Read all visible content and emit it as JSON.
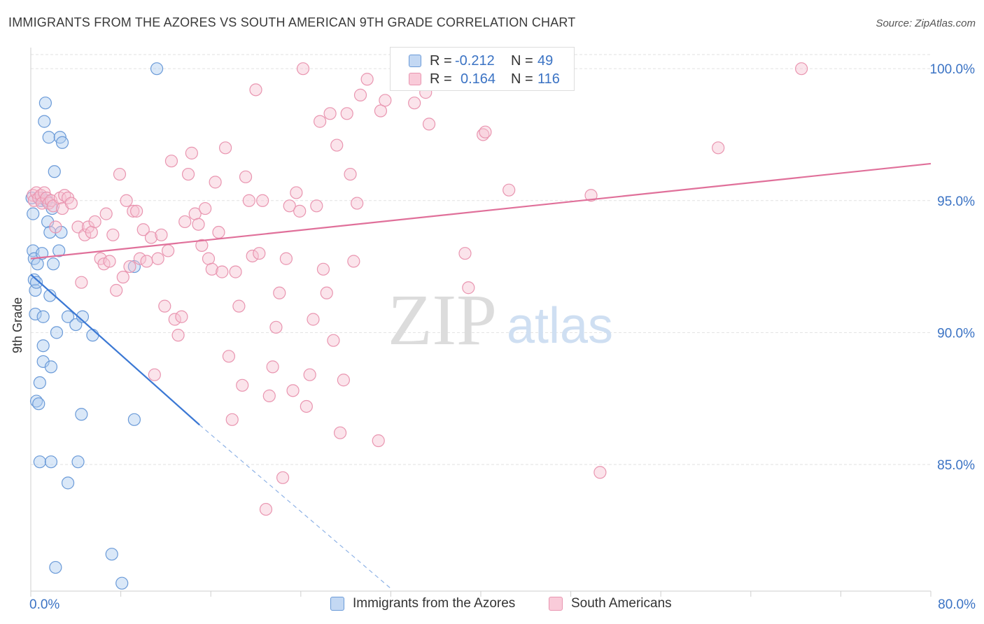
{
  "title": "IMMIGRANTS FROM THE AZORES VS SOUTH AMERICAN 9TH GRADE CORRELATION CHART",
  "source": "Source: ZipAtlas.com",
  "watermark": {
    "zip": "ZIP",
    "atlas": "atlas"
  },
  "colors": {
    "blue_fill": "#aecbf0",
    "blue_stroke": "#6a9ad8",
    "blue_line": "#3b78d4",
    "pink_fill": "#f7c3d3",
    "pink_stroke": "#e995b0",
    "pink_line": "#e0709a",
    "tick_label": "#3b73c4",
    "grid": "#e2e2e2"
  },
  "legend": {
    "rows": [
      {
        "r_label": "R =",
        "r_value": "-0.212",
        "n_label": "N =",
        "n_value": "49"
      },
      {
        "r_label": "R =",
        "r_value": "0.164",
        "n_label": "N =",
        "n_value": "116"
      }
    ]
  },
  "chart_data": {
    "type": "scatter",
    "title": "IMMIGRANTS FROM THE AZORES VS SOUTH AMERICAN 9TH GRADE CORRELATION CHART",
    "xlabel": "",
    "ylabel": "9th Grade",
    "xlim": [
      0,
      80
    ],
    "ylim": [
      80.2,
      100.8
    ],
    "x_tick_labels": [
      "0.0%",
      "80.0%"
    ],
    "y_ticks": [
      85,
      90,
      95,
      100
    ],
    "y_tick_labels": [
      "85.0%",
      "90.0%",
      "95.0%",
      "100.0%"
    ],
    "grid": true,
    "legend_position": "bottom",
    "series": [
      {
        "name": "Immigrants from the Azores",
        "color": "blue",
        "R": -0.212,
        "N": 49,
        "trend": {
          "x": [
            0,
            15
          ],
          "y": [
            92.2,
            86.5
          ]
        },
        "trend_dashed": {
          "x": [
            15,
            32
          ],
          "y": [
            86.5,
            80.3
          ]
        },
        "points": [
          [
            0.1,
            95.1
          ],
          [
            0.2,
            94.5
          ],
          [
            0.2,
            93.1
          ],
          [
            0.3,
            92.8
          ],
          [
            0.3,
            92.0
          ],
          [
            0.4,
            91.6
          ],
          [
            0.4,
            90.7
          ],
          [
            0.5,
            91.9
          ],
          [
            0.6,
            92.6
          ],
          [
            0.5,
            87.4
          ],
          [
            0.7,
            87.3
          ],
          [
            0.8,
            88.1
          ],
          [
            0.8,
            85.1
          ],
          [
            0.9,
            95.0
          ],
          [
            1.0,
            95.1
          ],
          [
            1.0,
            93.0
          ],
          [
            1.1,
            89.5
          ],
          [
            1.1,
            88.9
          ],
          [
            1.1,
            90.6
          ],
          [
            1.2,
            98.0
          ],
          [
            1.3,
            98.7
          ],
          [
            1.4,
            95.0
          ],
          [
            1.5,
            94.2
          ],
          [
            1.6,
            97.4
          ],
          [
            1.7,
            93.8
          ],
          [
            1.7,
            91.4
          ],
          [
            1.8,
            88.7
          ],
          [
            1.9,
            94.7
          ],
          [
            1.8,
            85.1
          ],
          [
            2.0,
            92.6
          ],
          [
            2.1,
            96.1
          ],
          [
            2.3,
            90.0
          ],
          [
            2.5,
            93.1
          ],
          [
            2.6,
            97.4
          ],
          [
            2.7,
            93.8
          ],
          [
            2.8,
            97.2
          ],
          [
            3.3,
            90.6
          ],
          [
            3.3,
            84.3
          ],
          [
            4.0,
            90.3
          ],
          [
            4.2,
            85.1
          ],
          [
            4.5,
            86.9
          ],
          [
            4.6,
            90.6
          ],
          [
            5.5,
            89.9
          ],
          [
            7.2,
            81.6
          ],
          [
            8.1,
            80.5
          ],
          [
            9.2,
            86.7
          ],
          [
            9.2,
            92.5
          ],
          [
            11.2,
            100.0
          ],
          [
            2.2,
            81.1
          ]
        ]
      },
      {
        "name": "South Americans",
        "color": "pink",
        "R": 0.164,
        "N": 116,
        "trend": {
          "x": [
            0,
            80
          ],
          "y": [
            92.8,
            96.4
          ]
        },
        "points": [
          [
            0.2,
            95.2
          ],
          [
            0.3,
            95.0
          ],
          [
            0.5,
            95.3
          ],
          [
            0.7,
            95.1
          ],
          [
            0.9,
            95.2
          ],
          [
            1.0,
            94.9
          ],
          [
            1.2,
            95.3
          ],
          [
            1.4,
            95.1
          ],
          [
            1.6,
            94.9
          ],
          [
            1.8,
            95.0
          ],
          [
            2.0,
            94.8
          ],
          [
            2.2,
            94.0
          ],
          [
            2.6,
            95.1
          ],
          [
            2.8,
            94.7
          ],
          [
            3.0,
            95.2
          ],
          [
            3.3,
            95.1
          ],
          [
            3.6,
            94.9
          ],
          [
            4.2,
            94.0
          ],
          [
            4.5,
            91.9
          ],
          [
            4.8,
            93.7
          ],
          [
            5.1,
            94.0
          ],
          [
            5.4,
            93.8
          ],
          [
            5.7,
            94.2
          ],
          [
            6.2,
            92.8
          ],
          [
            6.5,
            92.6
          ],
          [
            6.7,
            94.5
          ],
          [
            7.0,
            92.7
          ],
          [
            7.3,
            93.7
          ],
          [
            7.6,
            91.6
          ],
          [
            7.9,
            96.0
          ],
          [
            8.2,
            92.1
          ],
          [
            8.5,
            95.0
          ],
          [
            8.8,
            92.5
          ],
          [
            9.1,
            94.6
          ],
          [
            9.4,
            94.6
          ],
          [
            9.7,
            92.8
          ],
          [
            10.0,
            93.9
          ],
          [
            10.3,
            92.7
          ],
          [
            10.7,
            93.6
          ],
          [
            11.0,
            88.4
          ],
          [
            11.3,
            92.8
          ],
          [
            11.6,
            93.7
          ],
          [
            11.9,
            91.0
          ],
          [
            12.2,
            93.1
          ],
          [
            12.5,
            96.5
          ],
          [
            12.8,
            90.5
          ],
          [
            13.1,
            89.9
          ],
          [
            13.4,
            90.6
          ],
          [
            13.7,
            94.2
          ],
          [
            14.0,
            96.0
          ],
          [
            14.3,
            96.8
          ],
          [
            14.6,
            94.5
          ],
          [
            14.9,
            94.1
          ],
          [
            15.2,
            93.3
          ],
          [
            15.5,
            94.7
          ],
          [
            15.8,
            92.8
          ],
          [
            16.1,
            92.4
          ],
          [
            16.4,
            95.7
          ],
          [
            16.7,
            93.8
          ],
          [
            17.0,
            92.3
          ],
          [
            17.3,
            97.0
          ],
          [
            17.6,
            89.1
          ],
          [
            17.9,
            86.7
          ],
          [
            18.2,
            92.3
          ],
          [
            18.5,
            91.0
          ],
          [
            18.8,
            88.0
          ],
          [
            19.1,
            95.9
          ],
          [
            19.4,
            95.0
          ],
          [
            19.7,
            92.9
          ],
          [
            20.0,
            99.2
          ],
          [
            20.3,
            93.0
          ],
          [
            20.6,
            95.0
          ],
          [
            20.9,
            83.3
          ],
          [
            21.2,
            87.6
          ],
          [
            21.5,
            88.7
          ],
          [
            21.8,
            90.2
          ],
          [
            22.1,
            91.5
          ],
          [
            22.4,
            84.5
          ],
          [
            22.7,
            92.8
          ],
          [
            23.0,
            94.8
          ],
          [
            23.3,
            87.8
          ],
          [
            23.6,
            95.3
          ],
          [
            23.9,
            94.6
          ],
          [
            24.2,
            100.0
          ],
          [
            24.5,
            87.2
          ],
          [
            24.8,
            88.4
          ],
          [
            25.1,
            90.5
          ],
          [
            25.4,
            94.8
          ],
          [
            25.7,
            98.0
          ],
          [
            26.0,
            92.4
          ],
          [
            26.3,
            91.5
          ],
          [
            26.6,
            98.3
          ],
          [
            26.9,
            89.7
          ],
          [
            27.2,
            97.1
          ],
          [
            27.5,
            86.2
          ],
          [
            27.8,
            88.2
          ],
          [
            28.1,
            98.3
          ],
          [
            28.4,
            96.0
          ],
          [
            28.7,
            92.7
          ],
          [
            29.0,
            94.9
          ],
          [
            29.3,
            99.0
          ],
          [
            29.9,
            99.6
          ],
          [
            30.9,
            85.9
          ],
          [
            31.1,
            98.4
          ],
          [
            31.5,
            98.8
          ],
          [
            32.6,
            100.0
          ],
          [
            34.1,
            98.7
          ],
          [
            35.1,
            99.1
          ],
          [
            35.4,
            97.9
          ],
          [
            37.4,
            99.9
          ],
          [
            38.6,
            93.0
          ],
          [
            38.9,
            91.7
          ],
          [
            40.2,
            97.5
          ],
          [
            40.4,
            97.6
          ],
          [
            42.5,
            95.4
          ],
          [
            49.8,
            95.2
          ],
          [
            50.6,
            84.7
          ],
          [
            61.1,
            97.0
          ],
          [
            68.5,
            100.0
          ]
        ]
      }
    ]
  },
  "bottom_legend": [
    {
      "label": "Immigrants from the Azores"
    },
    {
      "label": "South Americans"
    }
  ]
}
